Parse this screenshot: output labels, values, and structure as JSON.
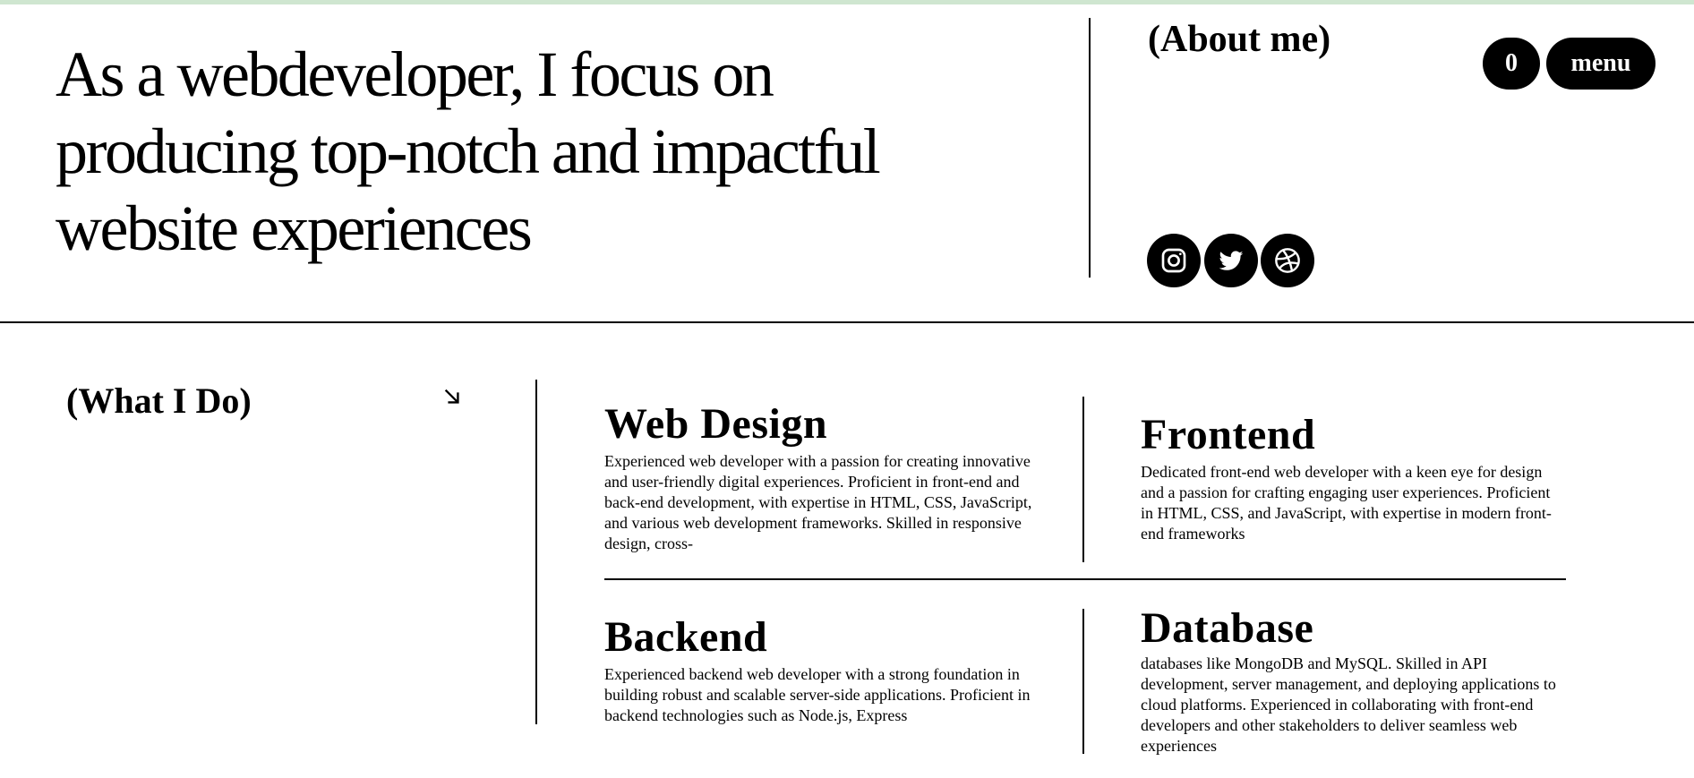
{
  "hero": {
    "heading": "As a webdeveloper, I focus on producing top-notch and impactful website experiences"
  },
  "about": {
    "title": "(About me)"
  },
  "header": {
    "cart_count": "0",
    "menu_label": "menu"
  },
  "social": {
    "icons": [
      "instagram-icon",
      "twitter-icon",
      "dribbble-icon"
    ]
  },
  "services": {
    "title": "(What I Do)",
    "arrow_icon": "arrow-down-right-icon",
    "cards": [
      {
        "title": "Web Design",
        "description": "Experienced web developer with a passion for creating innovative and user-friendly digital experiences. Proficient in front-end and back-end development, with expertise in HTML, CSS, JavaScript, and various web development frameworks. Skilled in responsive design, cross-"
      },
      {
        "title": "Frontend",
        "description": "Dedicated front-end web developer with a keen eye for design and a passion for crafting engaging user experiences. Proficient in HTML, CSS, and JavaScript, with expertise in modern front-end frameworks"
      },
      {
        "title": "Backend",
        "description": "Experienced backend web developer with a strong foundation in building robust and scalable server-side applications. Proficient in backend technologies such as Node.js, Express"
      },
      {
        "title": "Database",
        "description": "databases like MongoDB and MySQL. Skilled in API development, server management, and deploying applications to cloud platforms. Experienced in collaborating with front-end developers and other stakeholders to deliver seamless web experiences"
      }
    ]
  },
  "colors": {
    "accent_bar": "#cfe6d0",
    "primary": "#000000",
    "background": "#ffffff"
  }
}
